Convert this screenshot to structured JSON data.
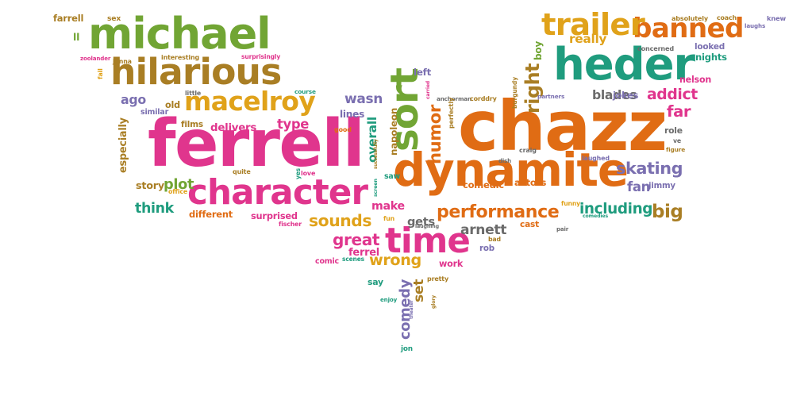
{
  "colors": {
    "magenta": "#e0358d",
    "orange": "#e06c14",
    "green": "#71a534",
    "teal": "#1f9c7e",
    "purple": "#7a6fb0",
    "olive": "#a97e24",
    "gold": "#e0a21a",
    "gray": "#6b6b6b"
  },
  "words": [
    {
      "text": "ferrell",
      "color": "magenta"
    },
    {
      "text": "chazz",
      "color": "orange"
    },
    {
      "text": "dynamite",
      "color": "orange"
    },
    {
      "text": "michael",
      "color": "green"
    },
    {
      "text": "hilarious",
      "color": "olive"
    },
    {
      "text": "heder",
      "color": "teal"
    },
    {
      "text": "banned",
      "color": "orange"
    },
    {
      "text": "character",
      "color": "magenta"
    },
    {
      "text": "macelroy",
      "color": "gold"
    },
    {
      "text": "time",
      "color": "magenta"
    },
    {
      "text": "sort",
      "color": "green"
    },
    {
      "text": "trailer",
      "color": "gold"
    },
    {
      "text": "performance",
      "color": "orange"
    },
    {
      "text": "skating",
      "color": "purple"
    },
    {
      "text": "addict",
      "color": "magenta"
    },
    {
      "text": "including",
      "color": "teal"
    },
    {
      "text": "sounds",
      "color": "gold"
    },
    {
      "text": "wrong",
      "color": "gold"
    },
    {
      "text": "great",
      "color": "magenta"
    },
    {
      "text": "arnett",
      "color": "gray"
    },
    {
      "text": "humor",
      "color": "orange"
    },
    {
      "text": "comedy",
      "color": "purple"
    },
    {
      "text": "big",
      "color": "olive"
    },
    {
      "text": "right",
      "color": "olive"
    },
    {
      "text": "really",
      "color": "gold"
    },
    {
      "text": "wasn",
      "color": "purple"
    },
    {
      "text": "delivers",
      "color": "magenta"
    },
    {
      "text": "plot",
      "color": "green"
    },
    {
      "text": "think",
      "color": "teal"
    },
    {
      "text": "especially",
      "color": "olive"
    },
    {
      "text": "type",
      "color": "magenta"
    },
    {
      "text": "overall",
      "color": "teal"
    },
    {
      "text": "blades",
      "color": "gray"
    },
    {
      "text": "fan",
      "color": "purple"
    },
    {
      "text": "far",
      "color": "magenta"
    },
    {
      "text": "ago",
      "color": "purple"
    },
    {
      "text": "gets",
      "color": "gray"
    },
    {
      "text": "make",
      "color": "magenta"
    },
    {
      "text": "set",
      "color": "olive"
    },
    {
      "text": "nights",
      "color": "teal"
    },
    {
      "text": "looked",
      "color": "purple"
    },
    {
      "text": "films",
      "color": "olive"
    },
    {
      "text": "lines",
      "color": "purple"
    },
    {
      "text": "different",
      "color": "orange"
    },
    {
      "text": "surprised",
      "color": "magenta"
    },
    {
      "text": "comedic",
      "color": "orange"
    },
    {
      "text": "actors",
      "color": "orange"
    },
    {
      "text": "jokes",
      "color": "purple"
    },
    {
      "text": "role",
      "color": "gray"
    },
    {
      "text": "story",
      "color": "olive"
    },
    {
      "text": "ll",
      "color": "green"
    },
    {
      "text": "farrell",
      "color": "olive"
    },
    {
      "text": "old",
      "color": "olive"
    },
    {
      "text": "similar",
      "color": "purple"
    },
    {
      "text": "saw",
      "color": "teal"
    },
    {
      "text": "left",
      "color": "purple"
    },
    {
      "text": "boy",
      "color": "green"
    },
    {
      "text": "work",
      "color": "magenta"
    },
    {
      "text": "rob",
      "color": "purple"
    },
    {
      "text": "cast",
      "color": "orange"
    },
    {
      "text": "comic",
      "color": "magenta"
    },
    {
      "text": "ferrel",
      "color": "magenta"
    },
    {
      "text": "say",
      "color": "teal"
    },
    {
      "text": "pretty",
      "color": "olive"
    },
    {
      "text": "napoleon",
      "color": "olive"
    },
    {
      "text": "jimmy",
      "color": "purple"
    },
    {
      "text": "nelson",
      "color": "magenta"
    },
    {
      "text": "laughed",
      "color": "purple"
    },
    {
      "text": "absolutely",
      "color": "olive"
    },
    {
      "text": "coach",
      "color": "olive"
    },
    {
      "text": "knew",
      "color": "purple"
    },
    {
      "text": "laughs",
      "color": "purple"
    },
    {
      "text": "concerned",
      "color": "gray"
    },
    {
      "text": "sex",
      "color": "olive"
    },
    {
      "text": "zoolander",
      "color": "magenta"
    },
    {
      "text": "jenna",
      "color": "olive"
    },
    {
      "text": "fail",
      "color": "gold"
    },
    {
      "text": "interesting",
      "color": "olive"
    },
    {
      "text": "surprisingly",
      "color": "magenta"
    },
    {
      "text": "course",
      "color": "teal"
    },
    {
      "text": "little",
      "color": "gray"
    },
    {
      "text": "office",
      "color": "gold"
    },
    {
      "text": "quite",
      "color": "olive"
    },
    {
      "text": "yes",
      "color": "teal"
    },
    {
      "text": "love",
      "color": "magenta"
    },
    {
      "text": "good",
      "color": "orange"
    },
    {
      "text": "anchorman",
      "color": "gray"
    },
    {
      "text": "corddry",
      "color": "olive"
    },
    {
      "text": "partners",
      "color": "purple"
    },
    {
      "text": "burgundy",
      "color": "olive"
    },
    {
      "text": "carried",
      "color": "magenta"
    },
    {
      "text": "perfectly",
      "color": "olive"
    },
    {
      "text": "successfully",
      "color": "olive"
    },
    {
      "text": "craig",
      "color": "gray"
    },
    {
      "text": "dish",
      "color": "gray"
    },
    {
      "text": "ve",
      "color": "gray"
    },
    {
      "text": "figure",
      "color": "olive"
    },
    {
      "text": "funny",
      "color": "gold"
    },
    {
      "text": "comedies",
      "color": "teal"
    },
    {
      "text": "pair",
      "color": "gray"
    },
    {
      "text": "bad",
      "color": "olive"
    },
    {
      "text": "fun",
      "color": "gold"
    },
    {
      "text": "laughing",
      "color": "gray"
    },
    {
      "text": "fischer",
      "color": "magenta"
    },
    {
      "text": "scenes",
      "color": "teal"
    },
    {
      "text": "screen",
      "color": "teal"
    },
    {
      "text": "enjoy",
      "color": "teal"
    },
    {
      "text": "theater",
      "color": "purple"
    },
    {
      "text": "glory",
      "color": "olive"
    },
    {
      "text": "jon",
      "color": "teal"
    }
  ]
}
